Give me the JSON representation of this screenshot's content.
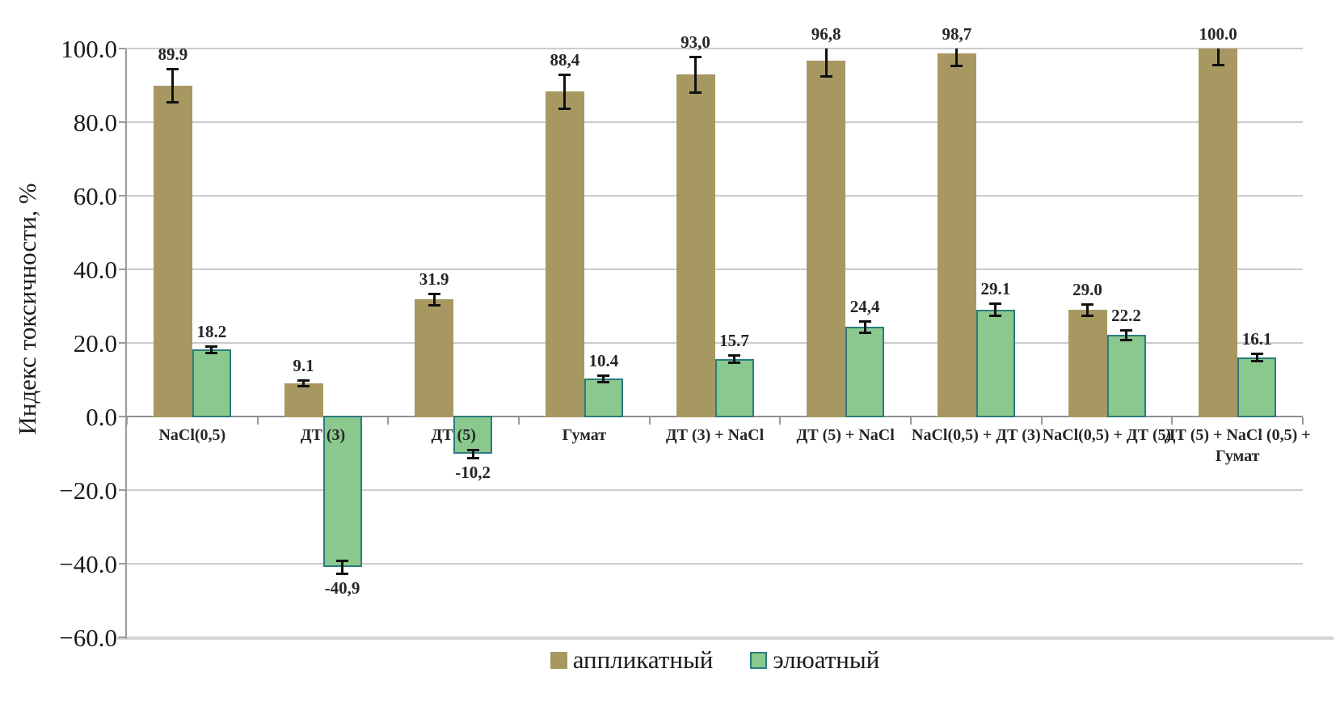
{
  "chart_data": {
    "type": "bar",
    "title": "",
    "ylabel": "Индекс токсичности, %",
    "xlabel": "",
    "ylim": [
      -60,
      100
    ],
    "grid": true,
    "legend_position": "bottom",
    "yticks": [
      {
        "v": 100,
        "label": "100.0"
      },
      {
        "v": 80,
        "label": "80.0"
      },
      {
        "v": 60,
        "label": "60.0"
      },
      {
        "v": 40,
        "label": "40.0"
      },
      {
        "v": 20,
        "label": "20.0"
      },
      {
        "v": 0,
        "label": "0.0"
      },
      {
        "v": -20,
        "label": "−20.0"
      },
      {
        "v": -40,
        "label": "−40.0"
      },
      {
        "v": -60,
        "label": "−60.0"
      }
    ],
    "categories": [
      "NaCl(0,5)",
      "ДТ (3)",
      "ДТ (5)",
      "Гумат",
      "ДТ (3) + NaCl",
      "ДТ (5) + NaCl",
      "NaCl(0,5) + ДТ (3)",
      "NaCl(0,5) + ДТ (5)",
      "ДТ (5) + NaCl (0,5) + Гумат"
    ],
    "series": [
      {
        "name": "аппликатный",
        "color": "#a79862",
        "values": [
          89.9,
          9.1,
          31.9,
          88.4,
          93.0,
          96.8,
          98.7,
          29.0,
          100.0
        ],
        "labels": [
          "89.9",
          "9.1",
          "31.9",
          "88,4",
          "93,0",
          "96,8",
          "98,7",
          "29.0",
          "100.0"
        ],
        "errors": [
          4.5,
          0.8,
          1.5,
          4.6,
          4.9,
          4.2,
          3.3,
          1.5,
          4.4
        ]
      },
      {
        "name": "элюатный",
        "color": "#8bc88d",
        "border_color": "#2b7b80",
        "values": [
          18.2,
          -40.9,
          -10.2,
          10.4,
          15.7,
          24.4,
          29.1,
          22.2,
          16.1
        ],
        "labels": [
          "18.2",
          "-40,9",
          "-10,2",
          "10.4",
          "15.7",
          "24,4",
          "29.1",
          "22.2",
          "16.1"
        ],
        "errors": [
          0.9,
          1.7,
          1.1,
          0.9,
          1.0,
          1.5,
          1.6,
          1.3,
          1.0
        ]
      }
    ]
  },
  "colors": {
    "grid": "#cbcbcb",
    "zero_line": "#8f8f8f",
    "axis": "#9a9a9a",
    "baseline_floor": "#d4d4d4",
    "error_bar": "#111111",
    "text": "#1a1a1a"
  }
}
